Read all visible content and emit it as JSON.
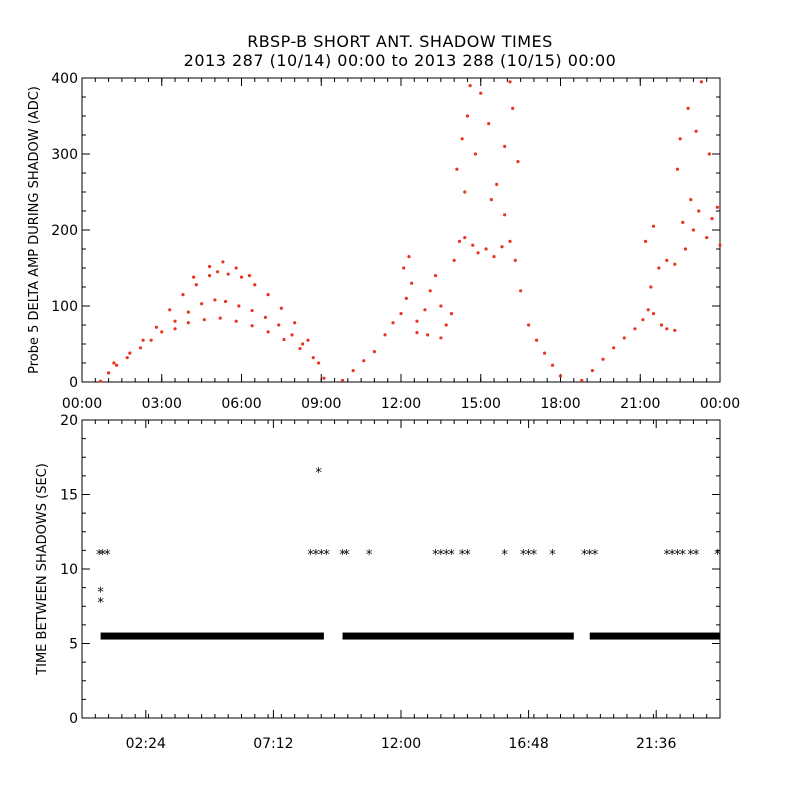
{
  "title_line1": "RBSP-B SHORT ANT. SHADOW TIMES",
  "title_line2": "2013 287 (10/14) 00:00 to 2013 288 (10/15) 00:00",
  "chart_data": [
    {
      "type": "scatter",
      "ylabel": "Probe 5 DELTA AMP DURING SHADOW (ADC)",
      "xlabel": "",
      "xlim": [
        0,
        24
      ],
      "ylim": [
        0,
        400
      ],
      "x_ticks": [
        "00:00",
        "03:00",
        "06:00",
        "09:00",
        "12:00",
        "15:00",
        "18:00",
        "21:00",
        "00:00"
      ],
      "y_ticks": [
        "0",
        "100",
        "200",
        "300",
        "400"
      ],
      "marker_color": "#e8361e",
      "series": [
        {
          "points": [
            [
              0.7,
              1
            ],
            [
              1.0,
              12
            ],
            [
              1.3,
              22
            ],
            [
              1.7,
              32
            ],
            [
              2.2,
              45
            ],
            [
              2.6,
              55
            ],
            [
              3.0,
              66
            ],
            [
              3.5,
              80
            ],
            [
              4.0,
              92
            ],
            [
              4.5,
              103
            ],
            [
              5.0,
              108
            ],
            [
              5.4,
              106
            ],
            [
              5.9,
              100
            ],
            [
              6.4,
              94
            ],
            [
              6.9,
              85
            ],
            [
              7.4,
              75
            ],
            [
              7.9,
              62
            ],
            [
              8.3,
              50
            ],
            [
              8.7,
              32
            ],
            [
              9.1,
              5
            ],
            [
              1.2,
              25
            ],
            [
              1.8,
              38
            ],
            [
              2.3,
              55
            ],
            [
              2.8,
              72
            ],
            [
              3.3,
              95
            ],
            [
              3.8,
              115
            ],
            [
              4.3,
              128
            ],
            [
              4.8,
              140
            ],
            [
              5.1,
              145
            ],
            [
              5.5,
              142
            ],
            [
              6.0,
              138
            ],
            [
              6.5,
              128
            ],
            [
              7.0,
              115
            ],
            [
              7.5,
              97
            ],
            [
              8.0,
              78
            ],
            [
              8.5,
              55
            ],
            [
              8.9,
              25
            ],
            [
              3.5,
              70
            ],
            [
              4.0,
              78
            ],
            [
              4.6,
              82
            ],
            [
              5.2,
              84
            ],
            [
              5.8,
              80
            ],
            [
              6.4,
              74
            ],
            [
              7.0,
              66
            ],
            [
              7.6,
              56
            ],
            [
              8.2,
              44
            ],
            [
              4.2,
              138
            ],
            [
              4.8,
              152
            ],
            [
              5.3,
              158
            ],
            [
              5.8,
              150
            ],
            [
              6.3,
              140
            ],
            [
              9.8,
              2
            ],
            [
              10.2,
              15
            ],
            [
              10.6,
              28
            ],
            [
              11.0,
              40
            ],
            [
              11.4,
              62
            ],
            [
              11.7,
              78
            ],
            [
              12.0,
              90
            ],
            [
              12.2,
              110
            ],
            [
              12.3,
              165
            ],
            [
              12.4,
              130
            ],
            [
              12.6,
              80
            ],
            [
              12.9,
              95
            ],
            [
              13.1,
              120
            ],
            [
              13.3,
              140
            ],
            [
              13.5,
              100
            ],
            [
              13.7,
              75
            ],
            [
              13.9,
              90
            ],
            [
              12.6,
              65
            ],
            [
              13.0,
              62
            ],
            [
              13.5,
              58
            ],
            [
              12.1,
              150
            ],
            [
              14.0,
              160
            ],
            [
              14.2,
              185
            ],
            [
              14.4,
              190
            ],
            [
              14.7,
              180
            ],
            [
              14.9,
              170
            ],
            [
              15.2,
              175
            ],
            [
              15.5,
              165
            ],
            [
              15.8,
              178
            ],
            [
              16.1,
              185
            ],
            [
              16.3,
              160
            ],
            [
              16.5,
              120
            ],
            [
              16.8,
              75
            ],
            [
              17.1,
              55
            ],
            [
              17.4,
              38
            ],
            [
              17.7,
              22
            ],
            [
              18.0,
              8
            ],
            [
              14.1,
              280
            ],
            [
              14.3,
              320
            ],
            [
              14.5,
              350
            ],
            [
              14.8,
              300
            ],
            [
              15.0,
              380
            ],
            [
              15.3,
              340
            ],
            [
              15.6,
              260
            ],
            [
              15.9,
              310
            ],
            [
              16.2,
              360
            ],
            [
              16.4,
              290
            ],
            [
              14.6,
              390
            ],
            [
              16.1,
              395
            ],
            [
              15.4,
              240
            ],
            [
              14.4,
              250
            ],
            [
              15.9,
              220
            ],
            [
              18.8,
              2
            ],
            [
              19.2,
              15
            ],
            [
              19.6,
              30
            ],
            [
              20.0,
              45
            ],
            [
              20.4,
              58
            ],
            [
              20.8,
              70
            ],
            [
              21.1,
              82
            ],
            [
              21.3,
              95
            ],
            [
              21.5,
              90
            ],
            [
              21.8,
              75
            ],
            [
              22.0,
              70
            ],
            [
              22.3,
              68
            ],
            [
              21.4,
              125
            ],
            [
              21.7,
              150
            ],
            [
              22.0,
              160
            ],
            [
              22.3,
              155
            ],
            [
              21.2,
              185
            ],
            [
              21.5,
              205
            ],
            [
              22.6,
              210
            ],
            [
              22.9,
              240
            ],
            [
              23.2,
              225
            ],
            [
              23.5,
              190
            ],
            [
              23.7,
              215
            ],
            [
              23.9,
              230
            ],
            [
              24.0,
              180
            ],
            [
              23.0,
              200
            ],
            [
              22.7,
              175
            ],
            [
              22.5,
              320
            ],
            [
              22.8,
              360
            ],
            [
              23.3,
              395
            ],
            [
              23.6,
              300
            ],
            [
              22.4,
              280
            ],
            [
              23.1,
              330
            ]
          ]
        }
      ]
    },
    {
      "type": "scatter",
      "ylabel": "TIME BETWEEN SHADOWS (SEC)",
      "xlabel": "",
      "xlim": [
        0,
        24
      ],
      "ylim": [
        0,
        20
      ],
      "x_ticks": [
        "02:24",
        "07:12",
        "12:00",
        "16:48",
        "21:36"
      ],
      "y_ticks": [
        "0",
        "5",
        "10",
        "15",
        "20"
      ],
      "marker": "*",
      "marker_color": "#000000",
      "baseline_segments": [
        [
          0.7,
          9.1,
          5.5
        ],
        [
          9.8,
          18.5,
          5.5
        ],
        [
          19.1,
          24.0,
          5.5
        ]
      ],
      "series": [
        {
          "points": [
            [
              0.65,
              11
            ],
            [
              0.78,
              11
            ],
            [
              0.95,
              11
            ],
            [
              0.7,
              8.5
            ],
            [
              0.7,
              7.8
            ],
            [
              8.6,
              11
            ],
            [
              8.8,
              11
            ],
            [
              9.0,
              11
            ],
            [
              9.2,
              11
            ],
            [
              8.9,
              16.5
            ],
            [
              9.8,
              11
            ],
            [
              9.95,
              11
            ],
            [
              10.8,
              11
            ],
            [
              13.3,
              11
            ],
            [
              13.5,
              11
            ],
            [
              13.7,
              11
            ],
            [
              13.9,
              11
            ],
            [
              14.3,
              11
            ],
            [
              14.5,
              11
            ],
            [
              15.9,
              11
            ],
            [
              16.6,
              11
            ],
            [
              16.8,
              11
            ],
            [
              17.0,
              11
            ],
            [
              17.7,
              11
            ],
            [
              18.9,
              11
            ],
            [
              19.1,
              11
            ],
            [
              19.3,
              11
            ],
            [
              22.0,
              11
            ],
            [
              22.2,
              11
            ],
            [
              22.4,
              11
            ],
            [
              22.6,
              11
            ],
            [
              22.9,
              11
            ],
            [
              23.1,
              11
            ],
            [
              23.9,
              11
            ]
          ]
        }
      ]
    }
  ]
}
